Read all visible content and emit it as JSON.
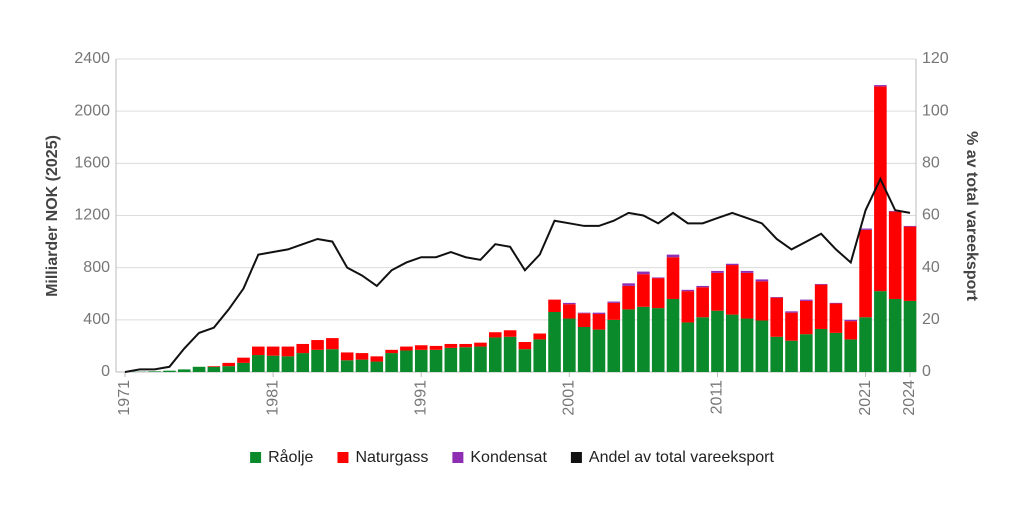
{
  "chart_data": {
    "type": "bar",
    "ylabel": "Milliarder NOK (2025)",
    "y2label": "% av total vareeksport",
    "x": [
      1971,
      1972,
      1973,
      1974,
      1975,
      1976,
      1977,
      1978,
      1979,
      1980,
      1981,
      1982,
      1983,
      1984,
      1985,
      1986,
      1987,
      1988,
      1989,
      1990,
      1991,
      1992,
      1993,
      1994,
      1995,
      1996,
      1997,
      1998,
      1999,
      2000,
      2001,
      2002,
      2003,
      2004,
      2005,
      2006,
      2007,
      2008,
      2009,
      2010,
      2011,
      2012,
      2013,
      2014,
      2015,
      2016,
      2017,
      2018,
      2019,
      2020,
      2021,
      2022,
      2023,
      2024
    ],
    "xlim": [
      1971,
      2024
    ],
    "xticks": [
      1971,
      1981,
      1991,
      2001,
      2011,
      2021,
      2024
    ],
    "ylim": [
      0,
      2400
    ],
    "yticks": [
      0,
      400,
      800,
      1200,
      1600,
      2000,
      2400
    ],
    "y2lim": [
      0,
      120
    ],
    "y2ticks": [
      0,
      20,
      40,
      60,
      80,
      100,
      120
    ],
    "grid": true,
    "legend": "bottom",
    "series": [
      {
        "name": "Råolje",
        "color": "#0b8a2b",
        "values": [
          0,
          2,
          5,
          10,
          20,
          40,
          40,
          45,
          70,
          130,
          125,
          120,
          145,
          170,
          175,
          90,
          95,
          80,
          145,
          165,
          170,
          170,
          185,
          190,
          195,
          265,
          270,
          175,
          250,
          460,
          410,
          345,
          325,
          400,
          480,
          500,
          490,
          560,
          380,
          420,
          470,
          440,
          410,
          395,
          270,
          240,
          290,
          330,
          300,
          250,
          420,
          620,
          560,
          545
        ]
      },
      {
        "name": "Naturgass",
        "color": "#ff0000",
        "values": [
          0,
          0,
          0,
          0,
          0,
          0,
          5,
          25,
          40,
          65,
          70,
          75,
          70,
          75,
          85,
          60,
          50,
          40,
          25,
          30,
          35,
          30,
          30,
          25,
          30,
          40,
          50,
          55,
          45,
          95,
          110,
          105,
          120,
          130,
          180,
          250,
          230,
          320,
          240,
          230,
          290,
          380,
          350,
          300,
          300,
          215,
          255,
          340,
          225,
          140,
          670,
          1570,
          670,
          570
        ]
      },
      {
        "name": "Kondensat",
        "color": "#8e2fb3",
        "values": [
          0,
          0,
          0,
          0,
          0,
          0,
          0,
          0,
          0,
          0,
          0,
          0,
          0,
          0,
          0,
          0,
          0,
          0,
          0,
          0,
          0,
          0,
          0,
          0,
          0,
          0,
          0,
          0,
          0,
          0,
          10,
          5,
          10,
          10,
          20,
          20,
          5,
          20,
          10,
          10,
          15,
          10,
          15,
          15,
          5,
          10,
          10,
          5,
          5,
          10,
          10,
          10,
          5,
          5
        ]
      },
      {
        "name": "Andel av total vareeksport",
        "color": "#111111",
        "type": "line",
        "axis": "y2",
        "values": [
          0,
          1,
          1,
          2,
          9,
          15,
          17,
          24,
          32,
          45,
          46,
          47,
          49,
          51,
          50,
          40,
          37,
          33,
          39,
          42,
          44,
          44,
          46,
          44,
          43,
          49,
          48,
          39,
          45,
          58,
          57,
          56,
          56,
          58,
          61,
          60,
          57,
          61,
          57,
          57,
          59,
          61,
          59,
          57,
          51,
          47,
          50,
          53,
          47,
          42,
          62,
          74,
          62,
          61
        ]
      }
    ]
  }
}
